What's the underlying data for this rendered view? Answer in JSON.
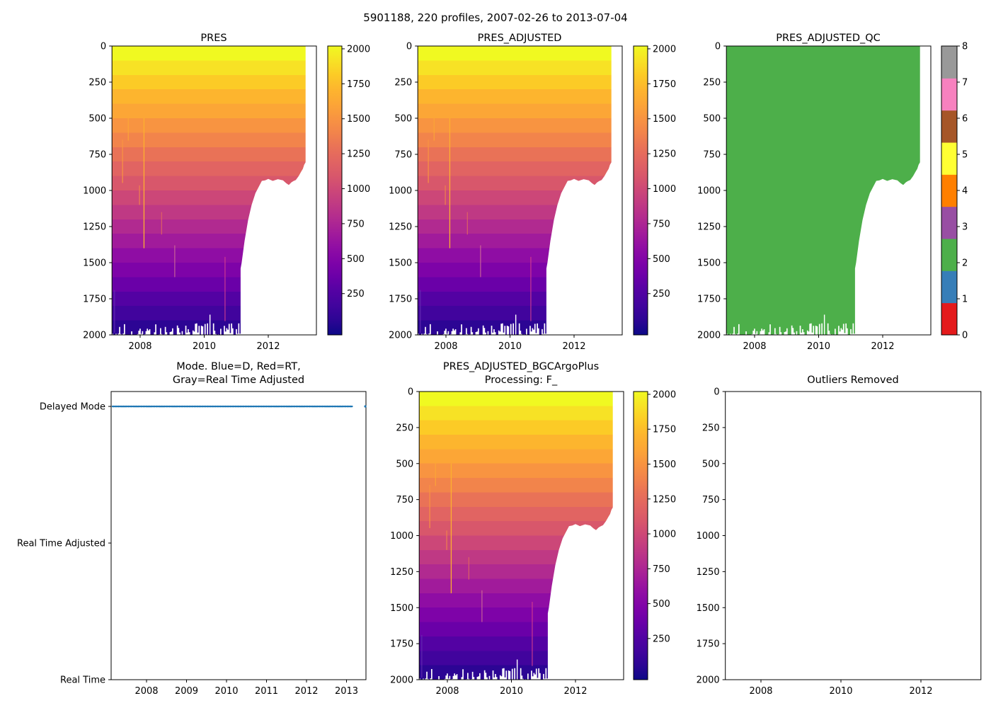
{
  "figure": {
    "title": "5901188, 220 profiles, 2007-02-26 to 2013-07-04"
  },
  "titles": {
    "pres": "PRES",
    "pres_adjusted": "PRES_ADJUSTED",
    "qc": "PRES_ADJUSTED_QC",
    "mode": "Mode. Blue=D, Red=RT,\nGray=Real Time Adjusted",
    "bgc": "PRES_ADJUSTED_BGCArgoPlus\nProcessing: F_",
    "outliers": "Outliers Removed"
  },
  "colors": {
    "line_blue": "#1f77b4",
    "qc_green": "#4daf4a",
    "set1": [
      "#e41a1c",
      "#377eb8",
      "#4daf4a",
      "#984ea3",
      "#ff7f00",
      "#ffff33",
      "#a65628",
      "#f781bf",
      "#999999"
    ],
    "plasma": [
      "#0d0887",
      "#2c0594",
      "#41049d",
      "#5302a3",
      "#6a00a8",
      "#7e03a8",
      "#8f0da4",
      "#a11b9b",
      "#b12a90",
      "#bf3984",
      "#cc4778",
      "#d8576b",
      "#e16462",
      "#e97257",
      "#f2844b",
      "#f89441",
      "#fca636",
      "#fdb52e",
      "#fccb26",
      "#f7e225",
      "#f0f921"
    ]
  },
  "chart_data": [
    {
      "id": "pres",
      "type": "heatmap",
      "title": "PRES",
      "colormap": "plasma_r",
      "x_ticks": [
        2008,
        2010,
        2012
      ],
      "y_ticks": [
        0,
        250,
        500,
        750,
        1000,
        1250,
        1500,
        1750,
        2000
      ],
      "xlim": [
        2007.12,
        2013.5
      ],
      "ylim": [
        0,
        2000
      ],
      "y_inverted": true,
      "colorbar_ticks": [
        2000,
        1750,
        1500,
        1250,
        1000,
        750,
        500,
        250
      ],
      "colorbar_range": [
        0,
        2000
      ]
    },
    {
      "id": "pres_adjusted",
      "type": "heatmap",
      "title": "PRES_ADJUSTED",
      "colormap": "plasma_r",
      "x_ticks": [
        2008,
        2010,
        2012
      ],
      "y_ticks": [
        0,
        250,
        500,
        750,
        1000,
        1250,
        1500,
        1750,
        2000
      ],
      "xlim": [
        2007.12,
        2013.5
      ],
      "ylim": [
        0,
        2000
      ],
      "y_inverted": true,
      "colorbar_ticks": [
        2000,
        1750,
        1500,
        1250,
        1000,
        750,
        500,
        250
      ],
      "colorbar_range": [
        0,
        2000
      ]
    },
    {
      "id": "qc",
      "type": "heatmap_qc",
      "title": "PRES_ADJUSTED_QC",
      "value": 2,
      "value_color": "#4daf4a",
      "x_ticks": [
        2008,
        2010,
        2012
      ],
      "y_ticks": [
        0,
        250,
        500,
        750,
        1000,
        1250,
        1500,
        1750,
        2000
      ],
      "xlim": [
        2007.12,
        2013.5
      ],
      "ylim": [
        0,
        2000
      ],
      "y_inverted": true,
      "colorbar_ticks": [
        8,
        7,
        6,
        5,
        4,
        3,
        2,
        1,
        0
      ],
      "colorbar_range": [
        0,
        8
      ]
    },
    {
      "id": "mode",
      "type": "line",
      "title": "Mode. Blue=D, Red=RT, Gray=Real Time Adjusted",
      "x_ticks": [
        2008,
        2009,
        2010,
        2011,
        2012,
        2013
      ],
      "y_categories": [
        "Real Time",
        "Real Time Adjusted",
        "Delayed Mode"
      ],
      "xlim": [
        2007.11,
        2013.49
      ],
      "line": {
        "category": "Delayed Mode",
        "x_start": 2007.15,
        "x_end": 2013.14
      },
      "isolated_point_x": 2013.47
    },
    {
      "id": "bgc",
      "type": "heatmap",
      "title": "PRES_ADJUSTED_BGCArgoPlus Processing: F_",
      "colormap": "plasma_r",
      "x_ticks": [
        2008,
        2010,
        2012
      ],
      "y_ticks": [
        0,
        250,
        500,
        750,
        1000,
        1250,
        1500,
        1750,
        2000
      ],
      "xlim": [
        2007.12,
        2013.5
      ],
      "ylim": [
        0,
        2000
      ],
      "y_inverted": true,
      "colorbar_ticks": [
        2000,
        1750,
        1500,
        1250,
        1000,
        750,
        500,
        250
      ],
      "colorbar_range": [
        0,
        2000
      ]
    },
    {
      "id": "outliers",
      "type": "empty",
      "title": "Outliers Removed",
      "x_ticks": [
        2008,
        2010,
        2012
      ],
      "y_ticks": [
        0,
        250,
        500,
        750,
        1000,
        1250,
        1500,
        1750,
        2000
      ],
      "xlim": [
        2007.11,
        2013.49
      ],
      "ylim": [
        0,
        2000
      ],
      "y_inverted": true
    }
  ],
  "shared_mesh": {
    "data_x_start": 2007.12,
    "data_x_end": 2013.165,
    "full_depth_until": 2011.135,
    "max_depth": 2000,
    "boundary": [
      [
        2013.165,
        805
      ],
      [
        2013.12,
        822
      ],
      [
        2013.08,
        850
      ],
      [
        2013.02,
        872
      ],
      [
        2012.95,
        900
      ],
      [
        2012.86,
        928
      ],
      [
        2012.78,
        936
      ],
      [
        2012.72,
        944
      ],
      [
        2012.64,
        962
      ],
      [
        2012.56,
        950
      ],
      [
        2012.46,
        930
      ],
      [
        2012.3,
        922
      ],
      [
        2012.14,
        934
      ],
      [
        2012.0,
        920
      ],
      [
        2011.9,
        930
      ],
      [
        2011.8,
        934
      ],
      [
        2011.7,
        976
      ],
      [
        2011.6,
        1018
      ],
      [
        2011.48,
        1100
      ],
      [
        2011.37,
        1205
      ],
      [
        2011.26,
        1350
      ],
      [
        2011.17,
        1500
      ],
      [
        2011.135,
        1540
      ]
    ],
    "streaks": [
      {
        "x": 2007.45,
        "d1": 648,
        "d2": 948,
        "color": "#f89441",
        "opacity": 0.9
      },
      {
        "x": 2007.63,
        "d1": 498,
        "d2": 655,
        "color": "#fca636",
        "opacity": 0.85
      },
      {
        "x": 2008.12,
        "d1": 500,
        "d2": 1400,
        "color": "#fcb030",
        "opacity": 1
      },
      {
        "x": 2007.98,
        "d1": 965,
        "d2": 1100,
        "color": "#f2844b",
        "opacity": 0.85
      },
      {
        "x": 2008.67,
        "d1": 1150,
        "d2": 1305,
        "color": "#e16462",
        "opacity": 0.85
      },
      {
        "x": 2009.08,
        "d1": 1380,
        "d2": 1600,
        "color": "#cf6f96",
        "opacity": 0.8
      },
      {
        "x": 2010.65,
        "d1": 1460,
        "d2": 1905,
        "color": "#d6418f",
        "opacity": 0.8
      },
      {
        "x": 2007.2,
        "d1": 1690,
        "d2": 1985,
        "color": "#6a30b5",
        "opacity": 0.7
      }
    ],
    "white_gap": {
      "x": 2010.18,
      "d1": 1860,
      "d2": 2000
    }
  }
}
